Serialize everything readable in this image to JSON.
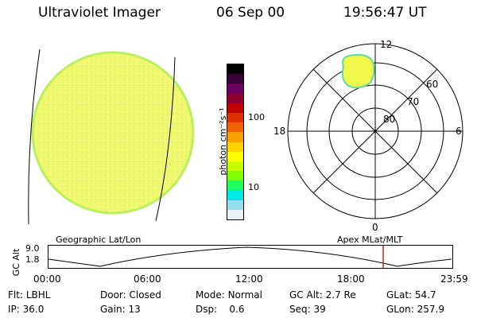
{
  "header": {
    "title": "Ultraviolet Imager",
    "date": "06 Sep 00",
    "time": "19:56:47 UT"
  },
  "colorbar": {
    "unit_label": "photon cm⁻²s⁻¹",
    "tick_labels": [
      "100",
      "10"
    ],
    "colors": [
      "#000000",
      "#3a003a",
      "#6a0060",
      "#8a0030",
      "#c00000",
      "#e03000",
      "#f06000",
      "#f8a000",
      "#fdd000",
      "#ffff00",
      "#c8ff00",
      "#80ff00",
      "#20ff60",
      "#00e8e8",
      "#90e0f0",
      "#e8f2f8"
    ]
  },
  "earth_image": {
    "fill_color": "#f0f870",
    "edge_color": "#b8f060"
  },
  "polar_plot": {
    "mlt_labels": {
      "top": "12",
      "left": "18",
      "right": "6",
      "bottom": "0"
    },
    "lat_labels": [
      "60",
      "70",
      "80"
    ]
  },
  "orbit_panel": {
    "left_label": "Geographic Lat/Lon",
    "right_label": "Apex MLat/MLT",
    "y_axis_label": "GC Alt",
    "y_ticks": [
      "9.0",
      "1.8"
    ],
    "x_ticks": [
      "00:00",
      "06:00",
      "12:00",
      "18:00",
      "23:59"
    ],
    "current_time_marker_color": "#cc2222"
  },
  "info": {
    "row1": [
      {
        "label": "Flt:",
        "value": "LBHL"
      },
      {
        "label": "Door:",
        "value": "Closed"
      },
      {
        "label": "Mode:",
        "value": "Normal"
      },
      {
        "label": "GC Alt:",
        "value": "2.7 Re"
      },
      {
        "label": "GLat:",
        "value": "54.7"
      }
    ],
    "row2": [
      {
        "label": "IP:",
        "value": "36.0"
      },
      {
        "label": "Gain:",
        "value": "13"
      },
      {
        "label": "Dsp:",
        "value": "0.6"
      },
      {
        "label": "Seq:",
        "value": "39"
      },
      {
        "label": "GLon:",
        "value": "257.9"
      }
    ]
  }
}
